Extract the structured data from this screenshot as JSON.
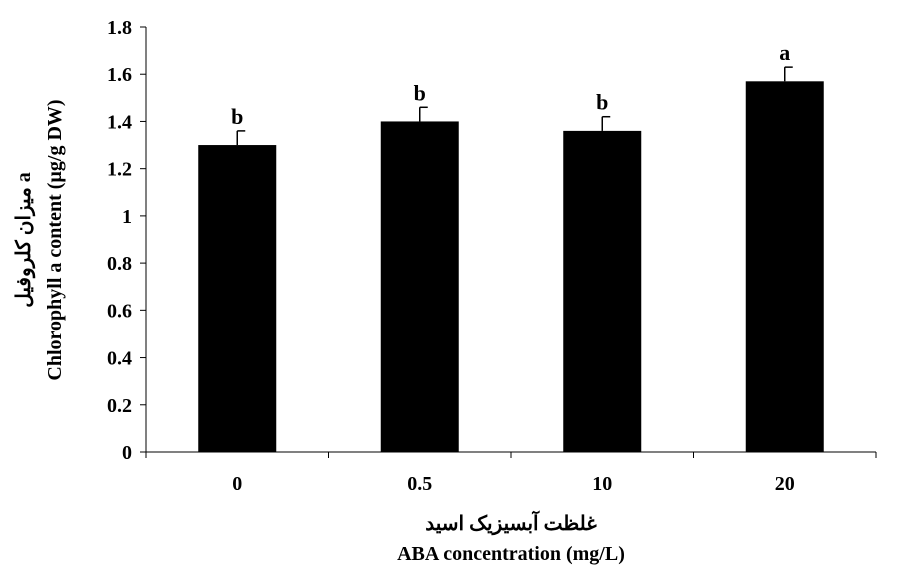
{
  "chart_data": {
    "type": "bar",
    "categories": [
      "0",
      "0.5",
      "10",
      "20"
    ],
    "values": [
      1.3,
      1.4,
      1.36,
      1.57
    ],
    "errors": [
      0.06,
      0.06,
      0.06,
      0.06
    ],
    "significance_letters": [
      "b",
      "b",
      "b",
      "a"
    ],
    "ylim": [
      0,
      1.8
    ],
    "yticks": [
      "0",
      "0.2",
      "0.4",
      "0.6",
      "0.8",
      "1",
      "1.2",
      "1.4",
      "1.6",
      "1.8"
    ],
    "ytick_values": [
      0,
      0.2,
      0.4,
      0.6,
      0.8,
      1.0,
      1.2,
      1.4,
      1.6,
      1.8
    ],
    "ylabel_fa": "میزان کلروفیل a",
    "ylabel_en": "Chlorophyll a content (µg/g DW)",
    "xlabel_fa": "غلظت آبسیزیک اسید",
    "xlabel_en": "ABA concentration (mg/L)",
    "bar_color": "#000000",
    "grid": false
  }
}
